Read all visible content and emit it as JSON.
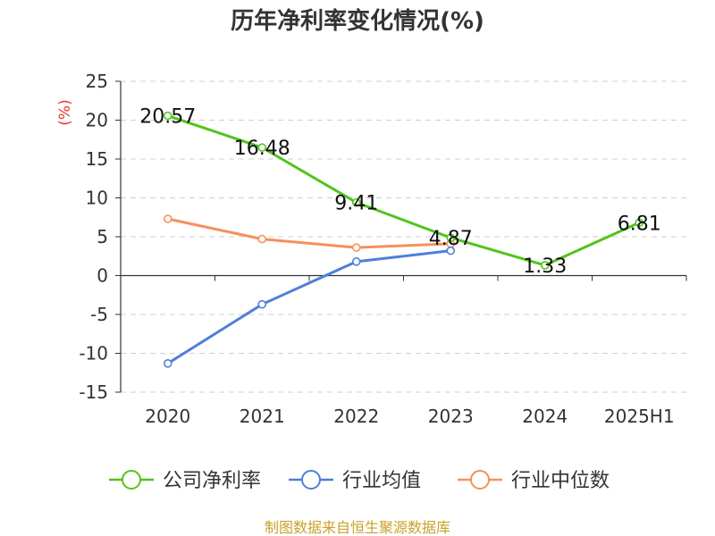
{
  "chart_data": {
    "type": "line",
    "title": "历年净利率变化情况(%)",
    "ylabel": "(%)",
    "xlabel": "",
    "categories": [
      "2020",
      "2021",
      "2022",
      "2023",
      "2024",
      "2025H1"
    ],
    "yticks": [
      25,
      20,
      15,
      10,
      5,
      0,
      -5,
      -10,
      -15
    ],
    "ylim": [
      -15,
      25
    ],
    "grid": true,
    "legend_position": "bottom",
    "series": [
      {
        "name": "公司净利率",
        "color": "#52c41a",
        "values": [
          20.57,
          16.48,
          9.41,
          4.87,
          1.33,
          6.81
        ],
        "labels": [
          "20.57",
          "16.48",
          "9.41",
          "4.87",
          "1.33",
          "6.81"
        ]
      },
      {
        "name": "行业均值",
        "color": "#4f7fd9",
        "values": [
          -11.3,
          -3.7,
          1.8,
          3.2,
          null,
          null
        ]
      },
      {
        "name": "行业中位数",
        "color": "#f5905a",
        "values": [
          7.3,
          4.7,
          3.6,
          4.1,
          null,
          null
        ]
      }
    ]
  },
  "footer": {
    "source": "制图数据来自恒生聚源数据库"
  }
}
